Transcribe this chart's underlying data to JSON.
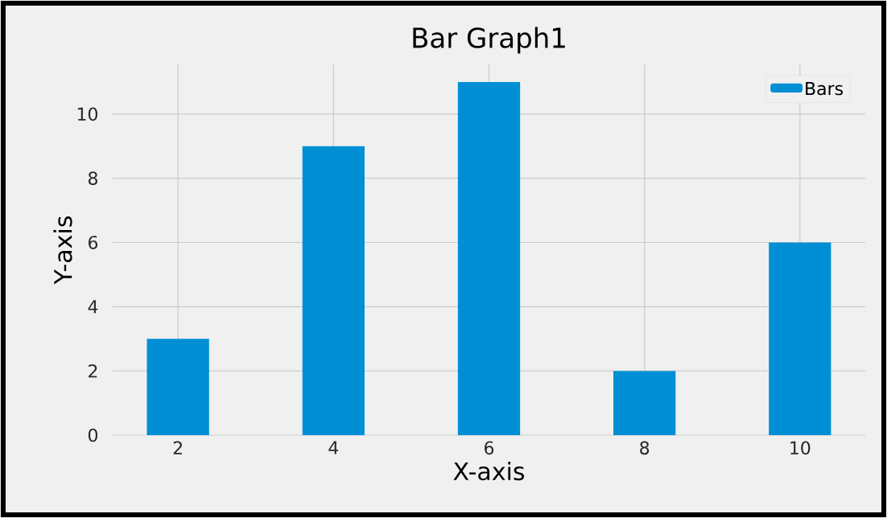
{
  "chart_data": {
    "type": "bar",
    "title": "Bar Graph1",
    "xlabel": "X-axis",
    "ylabel": "Y-axis",
    "x": [
      2,
      4,
      6,
      8,
      10
    ],
    "series": [
      {
        "name": "Bars",
        "color": "#008fd5",
        "values": [
          3,
          9,
          11,
          2,
          6
        ]
      }
    ],
    "xlim": [
      1.16,
      10.84
    ],
    "ylim": [
      0,
      11.55
    ],
    "xticks": [
      2,
      4,
      6,
      8,
      10
    ],
    "yticks": [
      0,
      2,
      4,
      6,
      8,
      10
    ],
    "grid": true,
    "legend": "top right"
  }
}
